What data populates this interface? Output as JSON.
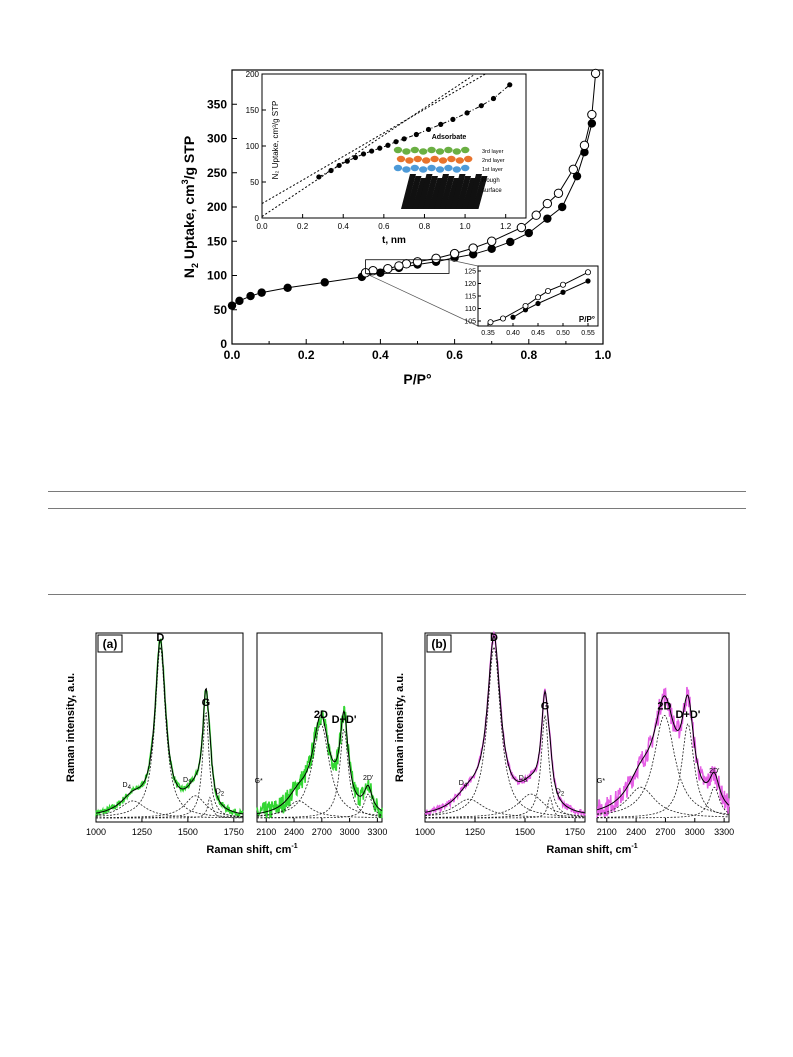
{
  "chart_data": [
    {
      "id": "isotherm",
      "type": "scatter",
      "xlabel": "P/P°",
      "ylabel_main": "N",
      "ylabel_sub": "2",
      "ylabel_rest": " Uptake, cm",
      "ylabel_sup": "3",
      "ylabel_tail": "/g STP",
      "xlim": [
        0,
        1.0
      ],
      "ylim": [
        0,
        400
      ],
      "xticks": [
        "0.0",
        "0.2",
        "0.4",
        "0.6",
        "0.8",
        "1.0"
      ],
      "yticks": [
        "0",
        "50",
        "100",
        "150",
        "200",
        "250",
        "300",
        "350"
      ],
      "series": [
        {
          "role": "adsorption",
          "marker": "filled",
          "x": [
            0.0,
            0.02,
            0.05,
            0.08,
            0.15,
            0.25,
            0.35,
            0.4,
            0.45,
            0.5,
            0.55,
            0.6,
            0.65,
            0.7,
            0.75,
            0.8,
            0.85,
            0.89,
            0.93,
            0.95,
            0.97
          ],
          "y": [
            56,
            63,
            70,
            75,
            82,
            90,
            98,
            104,
            111,
            116,
            120,
            126,
            131,
            139,
            149,
            162,
            183,
            200,
            245,
            280,
            322
          ]
        },
        {
          "role": "desorption",
          "marker": "open",
          "x": [
            0.98,
            0.97,
            0.95,
            0.92,
            0.88,
            0.85,
            0.82,
            0.78,
            0.7,
            0.65,
            0.6,
            0.55,
            0.5,
            0.47,
            0.45,
            0.42,
            0.38,
            0.36
          ],
          "y": [
            395,
            335,
            290,
            255,
            220,
            205,
            188,
            170,
            150,
            140,
            132,
            125,
            120,
            117,
            114,
            110,
            107,
            104
          ]
        }
      ],
      "inset_t": {
        "xlabel": "t, nm",
        "ylabel": "N₂ Uptake, cm³/g STP",
        "xlim": [
          0,
          1.3
        ],
        "ylim": [
          0,
          200
        ],
        "xticks": [
          "0.0",
          "0.2",
          "0.4",
          "0.6",
          "0.8",
          "1.0",
          "1.2"
        ],
        "yticks": [
          "0",
          "50",
          "100",
          "150",
          "200"
        ],
        "points": {
          "x": [
            0.28,
            0.34,
            0.38,
            0.42,
            0.46,
            0.5,
            0.54,
            0.58,
            0.62,
            0.66,
            0.7,
            0.76,
            0.82,
            0.88,
            0.94,
            1.01,
            1.08,
            1.14,
            1.22
          ],
          "y": [
            57,
            66,
            73,
            79,
            84,
            89,
            93,
            97,
            101,
            106,
            110,
            116,
            123,
            130,
            137,
            146,
            156,
            166,
            185
          ]
        },
        "fit_lines": [
          {
            "x": [
              0.0,
              1.1
            ],
            "y": [
              20,
              200
            ]
          },
          {
            "x": [
              0.0,
              1.05
            ],
            "y": [
              2,
              200
            ]
          }
        ],
        "schematic": {
          "title": "Adsorbate",
          "layers": [
            "3rd layer",
            "2nd layer",
            "1st layer"
          ],
          "layer_colors": [
            "#6aaf42",
            "#e8732c",
            "#4d9ad8"
          ],
          "surface": "Rough surface"
        }
      },
      "inset_zoom": {
        "xlabel": "P/P°",
        "xlim": [
          0.33,
          0.57
        ],
        "ylim": [
          103,
          127
        ],
        "xticks": [
          "0.35",
          "0.40",
          "0.45",
          "0.50",
          "0.55"
        ],
        "yticks": [
          "105",
          "110",
          "115",
          "120",
          "125"
        ],
        "filled": {
          "x": [
            0.4,
            0.425,
            0.45,
            0.5,
            0.55
          ],
          "y": [
            106.5,
            109.5,
            112,
            116.5,
            121
          ]
        },
        "open": {
          "x": [
            0.355,
            0.38,
            0.425,
            0.45,
            0.47,
            0.5,
            0.55
          ],
          "y": [
            104.5,
            106,
            111,
            114.5,
            117,
            119.5,
            124.5
          ]
        }
      }
    },
    {
      "id": "raman",
      "type": "line",
      "ylabel": "Raman intensity, a.u.",
      "xlabel": "Raman shift, cm",
      "xlabel_sup": "-1",
      "panels": [
        {
          "tag": "(a)",
          "color": "#33d633",
          "first_order": {
            "xlim": [
              1000,
              1800
            ],
            "xticks": [
              "1000",
              "1250",
              "1500",
              "1750"
            ],
            "peaks": [
              {
                "label": "D",
                "sub": "",
                "center": 1350,
                "height": 1.0,
                "width": 70
              },
              {
                "label": "G",
                "sub": "",
                "center": 1598,
                "height": 0.62,
                "width": 42
              },
              {
                "label": "D",
                "sub": "4",
                "center": 1200,
                "height": 0.1,
                "width": 170
              },
              {
                "label": "D",
                "sub": "3",
                "center": 1540,
                "height": 0.13,
                "width": 140
              },
              {
                "label": "D",
                "sub": "2",
                "center": 1620,
                "height": 0.12,
                "width": 30
              }
            ],
            "labels_shown": [
              "D",
              "G",
              "D4",
              "D3",
              "D2"
            ]
          },
          "second_order": {
            "xlim": [
              2000,
              3350
            ],
            "xticks": [
              "2100",
              "2400",
              "2700",
              "3000",
              "3300"
            ],
            "peaks": [
              {
                "label": "G*",
                "center": 2450,
                "height": 0.1,
                "width": 300
              },
              {
                "label": "2D",
                "center": 2690,
                "height": 0.55,
                "width": 220
              },
              {
                "label": "D+D'",
                "center": 2940,
                "height": 0.52,
                "width": 110
              },
              {
                "label": "2D'",
                "center": 3200,
                "height": 0.14,
                "width": 110
              }
            ]
          }
        },
        {
          "tag": "(b)",
          "color": "#e55fe5",
          "first_order": {
            "xlim": [
              1000,
              1800
            ],
            "xticks": [
              "1000",
              "1250",
              "1500",
              "1750"
            ],
            "peaks": [
              {
                "label": "D",
                "sub": "",
                "center": 1345,
                "height": 1.0,
                "width": 80
              },
              {
                "label": "G",
                "sub": "",
                "center": 1600,
                "height": 0.6,
                "width": 45
              },
              {
                "label": "D",
                "sub": "4",
                "center": 1220,
                "height": 0.11,
                "width": 180
              },
              {
                "label": "D",
                "sub": "3",
                "center": 1530,
                "height": 0.14,
                "width": 160
              },
              {
                "label": "D",
                "sub": "2",
                "center": 1625,
                "height": 0.12,
                "width": 30
              }
            ]
          },
          "second_order": {
            "xlim": [
              2000,
              3350
            ],
            "xticks": [
              "2100",
              "2400",
              "2700",
              "3000",
              "3300"
            ],
            "peaks": [
              {
                "label": "G*",
                "center": 2450,
                "height": 0.18,
                "width": 350
              },
              {
                "label": "2D",
                "center": 2690,
                "height": 0.6,
                "width": 260
              },
              {
                "label": "D+D'",
                "center": 2930,
                "height": 0.55,
                "width": 150
              },
              {
                "label": "2D'",
                "center": 3200,
                "height": 0.18,
                "width": 130
              }
            ]
          }
        }
      ]
    }
  ]
}
